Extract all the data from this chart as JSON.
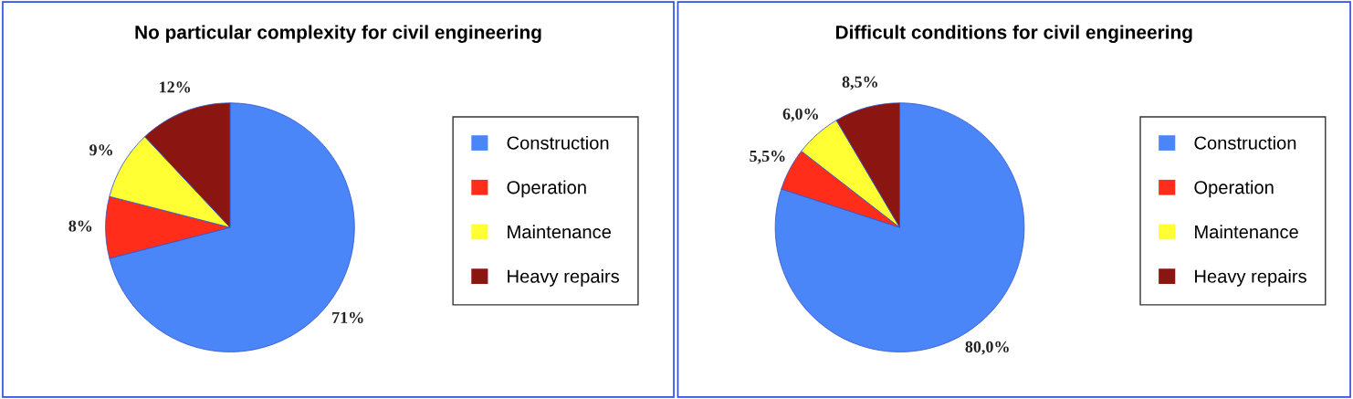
{
  "chart_data": [
    {
      "type": "pie",
      "title": "No particular complexity for civil engineering",
      "categories": [
        "Construction",
        "Operation",
        "Maintenance",
        "Heavy repairs"
      ],
      "values": [
        71,
        8,
        9,
        12
      ],
      "value_labels": [
        "71%",
        "8%",
        "9%",
        "12%"
      ],
      "colors": [
        "#4a86f8",
        "#ff2d1a",
        "#ffff33",
        "#8b1510"
      ],
      "legend": "right"
    },
    {
      "type": "pie",
      "title": "Difficult conditions for civil engineering",
      "categories": [
        "Construction",
        "Operation",
        "Maintenance",
        "Heavy repairs"
      ],
      "values": [
        80.0,
        5.5,
        6.0,
        8.5
      ],
      "value_labels": [
        "80,0%",
        "5,5%",
        "6,0%",
        "8,5%"
      ],
      "colors": [
        "#4a86f8",
        "#ff2d1a",
        "#ffff33",
        "#8b1510"
      ],
      "legend": "right"
    }
  ]
}
